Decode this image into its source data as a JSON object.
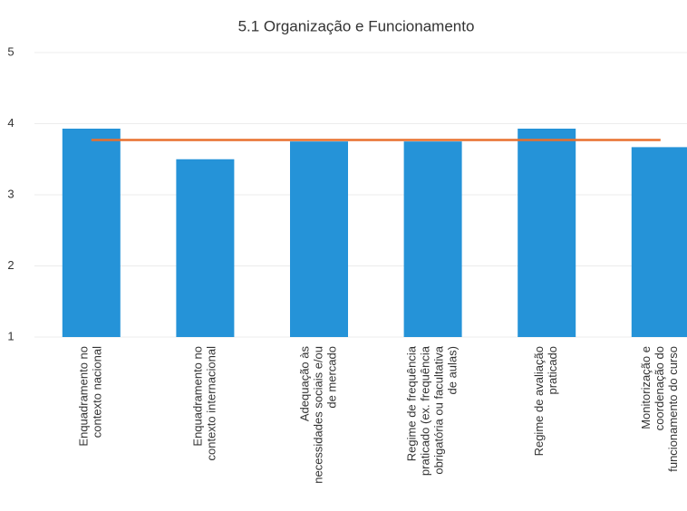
{
  "chart_data": {
    "type": "bar",
    "title": "5.1 Organização e Funcionamento",
    "categories": [
      [
        "Enquadramento no",
        "contexto nacional"
      ],
      [
        "Enquadramento no",
        "contexto internacional"
      ],
      [
        "Adequação às",
        "necessidades sociais e/ou",
        "de mercado"
      ],
      [
        "Regime de frequência",
        "praticado (ex. frequência",
        "obrigatória ou facultativa",
        "de aulas)"
      ],
      [
        "Regime de avaliação",
        "praticado"
      ],
      [
        "Monitorização e",
        "coordenação do",
        "funcionamento do curso"
      ]
    ],
    "series": [
      {
        "type": "bar",
        "color": "#2593d8",
        "values": [
          3.93,
          3.5,
          3.75,
          3.75,
          3.93,
          3.67
        ]
      },
      {
        "type": "line",
        "color": "#e8702f",
        "values": [
          3.77,
          3.77,
          3.77,
          3.77,
          3.77,
          3.77
        ]
      }
    ],
    "ylim": [
      1,
      5
    ],
    "yticks": [
      1,
      2,
      3,
      4,
      5
    ],
    "grid": true
  }
}
